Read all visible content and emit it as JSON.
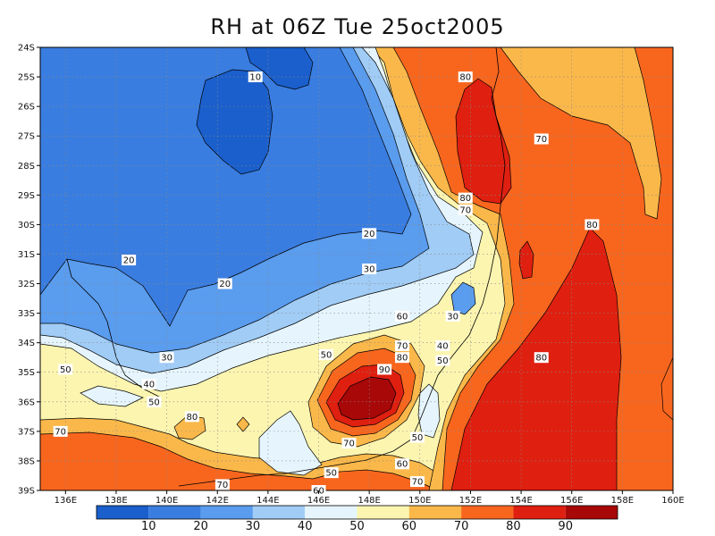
{
  "title": "RH at 06Z Tue 25oct2005",
  "map": {
    "lon_labels": [
      "136E",
      "138E",
      "140E",
      "142E",
      "144E",
      "146E",
      "148E",
      "150E",
      "152E",
      "154E",
      "156E",
      "158E",
      "160E"
    ],
    "lat_labels": [
      "24S",
      "25S",
      "26S",
      "27S",
      "28S",
      "29S",
      "30S",
      "31S",
      "32S",
      "33S",
      "34S",
      "35S",
      "36S",
      "37S",
      "38S",
      "39S"
    ],
    "lon_range": [
      135,
      160
    ],
    "lat_range": [
      -24,
      -39
    ],
    "grid": "dotted",
    "field": "RH"
  },
  "levels": [
    10,
    20,
    30,
    40,
    50,
    60,
    70,
    80,
    90
  ],
  "level_labels": [
    "10",
    "20",
    "30",
    "40",
    "50",
    "60",
    "70",
    "80",
    "90"
  ],
  "colors": [
    "#1a5fcc",
    "#3a7de0",
    "#5a9cee",
    "#a0ccf6",
    "#e6f5fd",
    "#fcf5b0",
    "#fbb84a",
    "#f8661e",
    "#df1f10",
    "#a80808"
  ],
  "contour_labels": [
    {
      "text": "10",
      "lon": 143.5,
      "lat": -25.0
    },
    {
      "text": "80",
      "lon": 151.8,
      "lat": -25.0
    },
    {
      "text": "70",
      "lon": 154.8,
      "lat": -27.1
    },
    {
      "text": "80",
      "lon": 151.8,
      "lat": -29.1
    },
    {
      "text": "70",
      "lon": 151.8,
      "lat": -29.5
    },
    {
      "text": "20",
      "lon": 148.0,
      "lat": -30.3
    },
    {
      "text": "80",
      "lon": 156.8,
      "lat": -30.0
    },
    {
      "text": "20",
      "lon": 138.5,
      "lat": -31.2
    },
    {
      "text": "30",
      "lon": 148.0,
      "lat": -31.5
    },
    {
      "text": "20",
      "lon": 142.3,
      "lat": -32.0
    },
    {
      "text": "30",
      "lon": 151.3,
      "lat": -33.1
    },
    {
      "text": "60",
      "lon": 149.3,
      "lat": -33.1
    },
    {
      "text": "40",
      "lon": 150.9,
      "lat": -34.1
    },
    {
      "text": "70",
      "lon": 149.3,
      "lat": -34.1
    },
    {
      "text": "30",
      "lon": 140.0,
      "lat": -34.5
    },
    {
      "text": "50",
      "lon": 146.3,
      "lat": -34.4
    },
    {
      "text": "80",
      "lon": 149.3,
      "lat": -34.5
    },
    {
      "text": "50",
      "lon": 150.9,
      "lat": -34.6
    },
    {
      "text": "80",
      "lon": 154.8,
      "lat": -34.5
    },
    {
      "text": "50",
      "lon": 136.0,
      "lat": -34.9
    },
    {
      "text": "90",
      "lon": 148.6,
      "lat": -34.9
    },
    {
      "text": "40",
      "lon": 139.3,
      "lat": -35.4
    },
    {
      "text": "50",
      "lon": 139.5,
      "lat": -36.0
    },
    {
      "text": "80",
      "lon": 141.0,
      "lat": -36.5
    },
    {
      "text": "70",
      "lon": 135.8,
      "lat": -37.0
    },
    {
      "text": "70",
      "lon": 147.2,
      "lat": -37.4
    },
    {
      "text": "50",
      "lon": 149.9,
      "lat": -37.2
    },
    {
      "text": "60",
      "lon": 149.3,
      "lat": -38.1
    },
    {
      "text": "50",
      "lon": 146.5,
      "lat": -38.4
    },
    {
      "text": "70",
      "lon": 142.2,
      "lat": -38.8
    },
    {
      "text": "70",
      "lon": 149.9,
      "lat": -38.7
    },
    {
      "text": "60",
      "lon": 146.0,
      "lat": -39.0
    }
  ]
}
